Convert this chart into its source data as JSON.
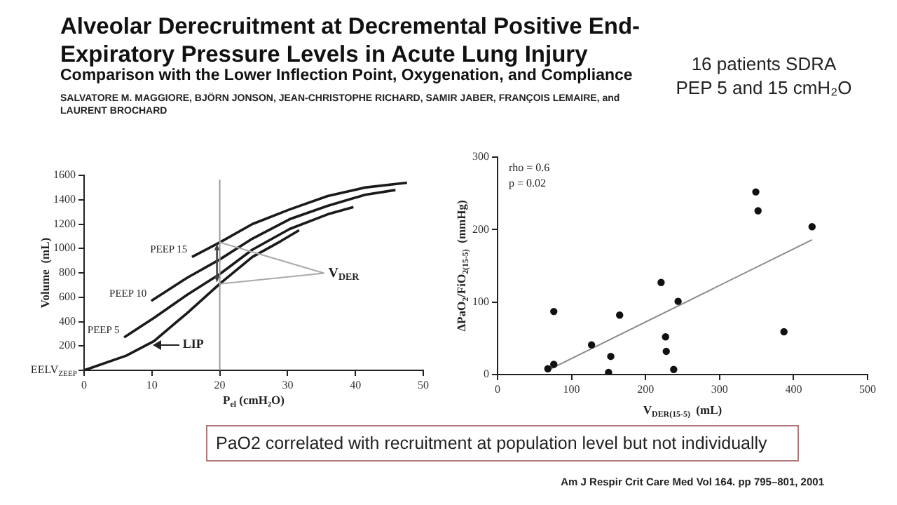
{
  "chart_data": [
    {
      "type": "line",
      "title": "Alveolar Derecruitment at Decremental Positive End-Expiratory Pressure Levels in Acute Lung Injury",
      "subtitle": "Comparison with the Lower Inflection Point, Oxygenation, and Compliance",
      "xlabel": "P$_{el}$ (cmH₂O)",
      "ylabel": "Volume  (mL)",
      "xlim": [
        0,
        50
      ],
      "xticks": [
        0,
        10,
        20,
        30,
        40,
        50
      ],
      "ylim": [
        0,
        1600
      ],
      "yticks": [
        {
          "value": 0,
          "label": "EELV$_{ZEEP}$"
        },
        200,
        400,
        600,
        800,
        1000,
        1200,
        1400,
        1600
      ],
      "grid": false,
      "marker": "none",
      "series": [
        {
          "color": "#1a1a1a",
          "x": [
            0,
            6.2,
            10.3,
            15.2,
            20,
            24.8,
            29,
            31.7
          ],
          "values": [
            0,
            120,
            240,
            470,
            710,
            930,
            1060,
            1150
          ]
        },
        {
          "name": "PEEP 5",
          "color": "#1a1a1a",
          "x": [
            5.9,
            10.3,
            15.2,
            20,
            24.8,
            30.3,
            35.9,
            39.7
          ],
          "values": [
            270,
            430,
            620,
            790,
            990,
            1160,
            1280,
            1340
          ]
        },
        {
          "name": "PEEP 10",
          "color": "#1a1a1a",
          "x": [
            9.9,
            15.2,
            20,
            24.8,
            30.3,
            35.9,
            41.4,
            45.9
          ],
          "values": [
            570,
            760,
            910,
            1080,
            1240,
            1350,
            1440,
            1480
          ]
        },
        {
          "name": "PEEP 15",
          "color": "#1a1a1a",
          "x": [
            15.9,
            20,
            24.8,
            30.3,
            35.9,
            41.4,
            47.6
          ],
          "values": [
            930,
            1050,
            1200,
            1320,
            1430,
            1500,
            1540
          ]
        }
      ],
      "ref_lines": [
        {
          "axis": "x",
          "value": 20,
          "color": "#9a9a9a"
        }
      ],
      "annotations": [
        {
          "text": "LIP",
          "x": 10,
          "y": 210
        },
        {
          "text": "V$_{DER}$",
          "x": 20,
          "y": 1050
        },
        "SALVATORE M. MAGGIORE, BJÖRN JONSON, JEAN-CHRISTOPHE RICHARD, SAMIR JABER, FRANÇOIS LEMAIRE, and LAURENT BROCHARD",
        "16 patients SDRA",
        "PEP 5 and 15 cmH₂O",
        "PaO2 correlated with recruitment at population level but not individually",
        "Am J Respir Crit Care Med   Vol 164. pp 795–801, 2001"
      ]
    },
    {
      "type": "scatter",
      "xlabel": "V$_{DER(15-5)}$  (mL)",
      "ylabel": "ΔPaO$_{2}$/FiO$_{2(15-5)}$  (mmHg)",
      "xlim": [
        0,
        500
      ],
      "xticks": [
        0,
        100,
        200,
        300,
        400,
        500
      ],
      "ylim": [
        0,
        300
      ],
      "yticks": [
        0,
        100,
        200,
        300
      ],
      "grid": false,
      "marker": "circle",
      "series": [
        {
          "type": "scatter",
          "color": "#111111",
          "x": [
            68,
            76,
            76,
            127,
            153,
            150,
            165,
            221,
            244,
            227,
            228,
            238,
            349,
            352,
            387,
            425
          ],
          "values": [
            8,
            14,
            87,
            41,
            25,
            3,
            82,
            127,
            101,
            52,
            32,
            7,
            252,
            226,
            59,
            204
          ]
        },
        {
          "type": "line",
          "marker": "none",
          "color": "#8a8a8a",
          "x": [
            68,
            425
          ],
          "values": [
            6,
            186
          ]
        }
      ],
      "annotations": [
        "rho = 0.6",
        "p = 0.02"
      ]
    }
  ]
}
